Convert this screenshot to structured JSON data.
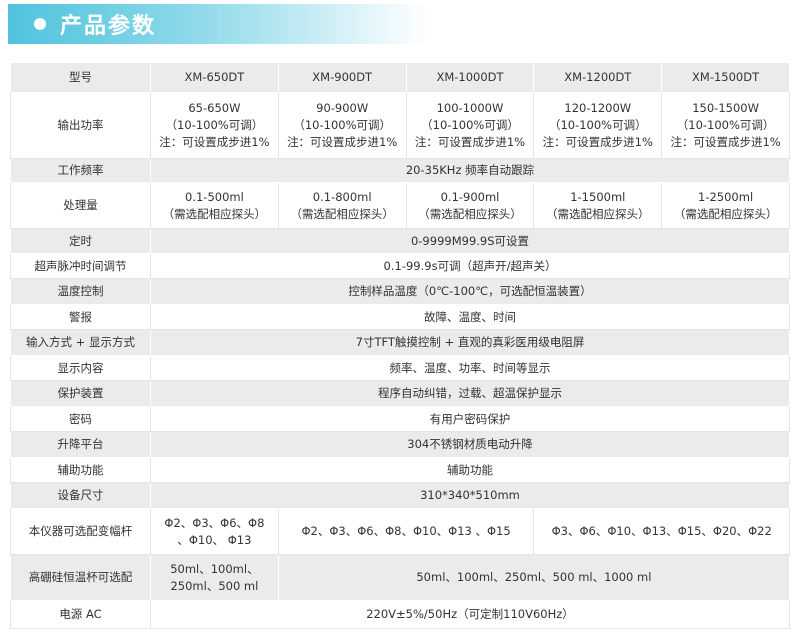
{
  "header": {
    "title": "产品参数"
  },
  "table": {
    "header": [
      "型号",
      "XM-650DT",
      "XM-900DT",
      "XM-1000DT",
      "XM-1200DT",
      "XM-1500DT"
    ],
    "rows": [
      {
        "label": "输出功率",
        "cells": [
          [
            "65-650W",
            "（10-100%可调）",
            "注：可设置成步进1%"
          ],
          [
            "90-900W",
            "（10-100%可调）",
            "注：可设置成步进1%"
          ],
          [
            "100-1000W",
            "（10-100%可调）",
            "注：可设置成步进1%"
          ],
          [
            "120-1200W",
            "（10-100%可调）",
            "注：可设置成步进1%"
          ],
          [
            "150-1500W",
            "（10-100%可调）",
            "注：可设置成步进1%"
          ]
        ]
      },
      {
        "label": "工作频率",
        "cells": [
          [
            "20-35KHz 频率自动跟踪"
          ]
        ]
      },
      {
        "label": "处理量",
        "cells": [
          [
            "0.1-500ml",
            "（需选配相应探头）"
          ],
          [
            "0.1-800ml",
            "（需选配相应探头）"
          ],
          [
            "0.1-900ml",
            "（需选配相应探头）"
          ],
          [
            "1-1500ml",
            "（需选配相应探头）"
          ],
          [
            "1-2500ml",
            "（需选配相应探头）"
          ]
        ]
      },
      {
        "label": "定时",
        "cells": [
          [
            "0-9999M99.9S可设置"
          ]
        ]
      },
      {
        "label": "超声脉冲时间调节",
        "cells": [
          [
            "0.1-99.9s可调（超声开/超声关）"
          ]
        ]
      },
      {
        "label": "温度控制",
        "cells": [
          [
            "控制样品温度（0℃-100℃，可选配恒温装置）"
          ]
        ]
      },
      {
        "label": "警报",
        "cells": [
          [
            "故障、温度、时间"
          ]
        ]
      },
      {
        "label": "输入方式 + 显示方式",
        "cells": [
          [
            "7寸TFT触摸控制 + 直观的真彩医用级电阻屏"
          ]
        ]
      },
      {
        "label": "显示内容",
        "cells": [
          [
            "频率、温度、功率、时间等显示"
          ]
        ]
      },
      {
        "label": "保护装置",
        "cells": [
          [
            "程序自动纠错，过载、超温保护显示"
          ]
        ]
      },
      {
        "label": "密码",
        "cells": [
          [
            "有用户密码保护"
          ]
        ]
      },
      {
        "label": "升降平台",
        "cells": [
          [
            "304不锈钢材质电动升降"
          ]
        ]
      },
      {
        "label": "辅助功能",
        "cells": [
          [
            "辅助功能"
          ]
        ]
      },
      {
        "label": "设备尺寸",
        "cells": [
          [
            "310*340*510mm"
          ]
        ]
      },
      {
        "label": "本仪器可选配变幅杆",
        "cells": [
          [
            "Φ2、Φ3、Φ6、Φ8",
            "、Φ10、 Φ13"
          ],
          [
            "Φ2、Φ3、Φ6、Φ8、Φ10、Φ13 、Φ15"
          ],
          [
            "Φ3、Φ6、Φ10、Φ13、Φ15、Φ20、Φ22"
          ]
        ]
      },
      {
        "label": "高硼硅恒温杯可选配",
        "cells": [
          [
            "50ml、100ml、",
            "250ml、500 ml"
          ],
          [
            "50ml、100ml、250ml、500 ml、1000 ml"
          ]
        ]
      },
      {
        "label": "电源 AC",
        "cells": [
          [
            "220V±5%/50Hz（可定制110V60Hz）"
          ]
        ]
      }
    ]
  }
}
